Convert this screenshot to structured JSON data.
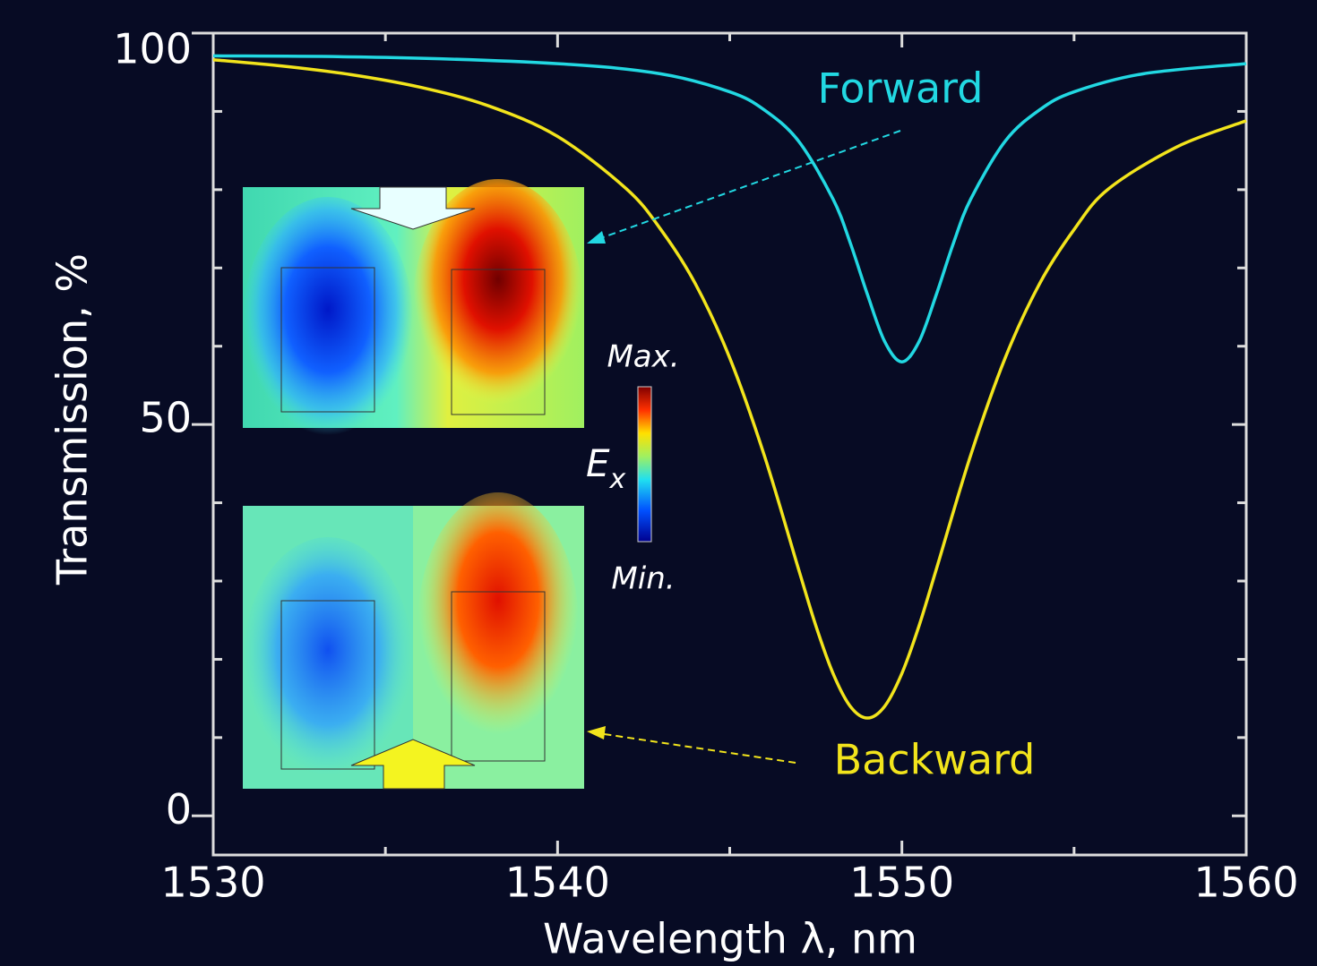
{
  "chart_data": {
    "type": "line",
    "xlabel": "Wavelength λ, nm",
    "ylabel": "Transmission, %",
    "xlim": [
      1530,
      1560
    ],
    "ylim": [
      -5,
      100
    ],
    "xticks": [
      1530,
      1540,
      1550,
      1560
    ],
    "yticks": [
      0,
      50,
      100
    ],
    "xminorticks": [
      1535,
      1545,
      1555
    ],
    "yminorticks": [
      10,
      20,
      30,
      40,
      60,
      70,
      80,
      90
    ],
    "series": [
      {
        "name": "Forward",
        "color": "#22d8e2",
        "x": [
          1530,
          1535,
          1540,
          1543,
          1545,
          1546,
          1547,
          1548,
          1548.5,
          1549,
          1549.5,
          1550,
          1550.5,
          1551,
          1551.5,
          1552,
          1553,
          1554,
          1555,
          1557,
          1560
        ],
        "values": [
          97.1,
          96.9,
          96.1,
          94.8,
          92.5,
          90.2,
          86.2,
          78.8,
          73.2,
          66.6,
          60.6,
          58.0,
          60.6,
          66.6,
          73.2,
          78.8,
          86.2,
          90.2,
          92.5,
          94.8,
          96.1
        ]
      },
      {
        "name": "Backward",
        "color": "#f2e41c",
        "x": [
          1530,
          1532,
          1534,
          1536,
          1538,
          1540,
          1542,
          1543,
          1544,
          1545,
          1546,
          1547,
          1547.5,
          1548,
          1548.5,
          1549,
          1549.5,
          1550,
          1550.5,
          1551,
          1552,
          1553,
          1554,
          1555,
          1556,
          1558,
          1560
        ],
        "values": [
          96.6,
          95.8,
          94.7,
          93.1,
          90.7,
          86.8,
          80.1,
          74.9,
          68.0,
          58.5,
          46.1,
          31.5,
          24.3,
          18.2,
          14.0,
          12.5,
          14.0,
          18.2,
          24.3,
          31.5,
          46.1,
          58.5,
          68.0,
          74.9,
          80.1,
          85.5,
          88.8
        ]
      }
    ],
    "colorbar": {
      "max_label": "Max.",
      "min_label": "Min.",
      "label": "E",
      "label_sub": "x"
    }
  }
}
